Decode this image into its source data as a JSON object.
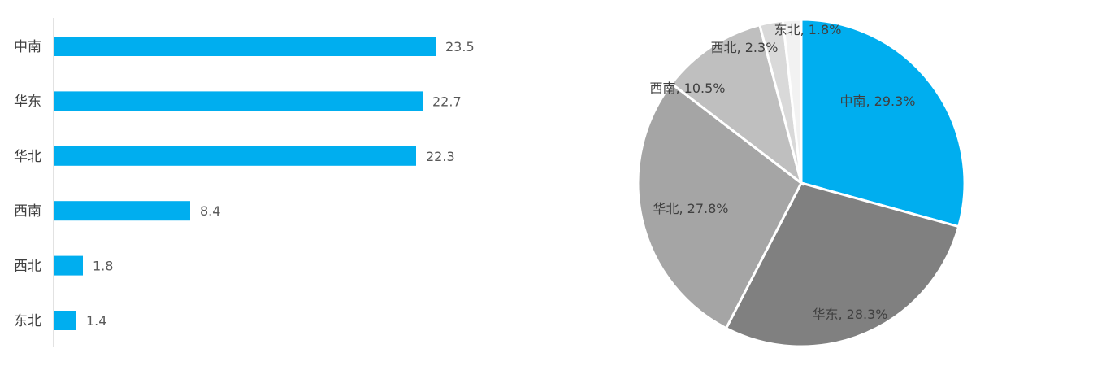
{
  "chart_data": [
    {
      "type": "bar",
      "orientation": "horizontal",
      "categories": [
        "中南",
        "华东",
        "华北",
        "西南",
        "西北",
        "东北"
      ],
      "values": [
        23.5,
        22.7,
        22.3,
        8.4,
        1.8,
        1.4
      ],
      "value_labels": [
        "23.5",
        "22.7",
        "22.3",
        "8.4",
        "1.8",
        "1.4"
      ],
      "title": "",
      "xlabel": "",
      "ylabel": "",
      "xlim": [
        0,
        23.5
      ],
      "grid": false,
      "legend": "none",
      "color": "#00AEEF"
    },
    {
      "type": "pie",
      "labels": [
        "中南",
        "华东",
        "华北",
        "西南",
        "西北",
        "东北"
      ],
      "values": [
        29.3,
        28.3,
        27.8,
        10.5,
        2.3,
        1.8
      ],
      "slice_labels": [
        "中南, 29.3%",
        "华东, 28.3%",
        "华北, 27.8%",
        "西南, 10.5%",
        "西北, 2.3%",
        "东北, 1.8%"
      ],
      "colors": [
        "#00AEEF",
        "#808080",
        "#A5A5A5",
        "#BFBFBF",
        "#D9D9D9",
        "#F2F2F2"
      ],
      "start": "12 o'clock",
      "direction": "clockwise",
      "title": "",
      "legend": "none"
    }
  ]
}
